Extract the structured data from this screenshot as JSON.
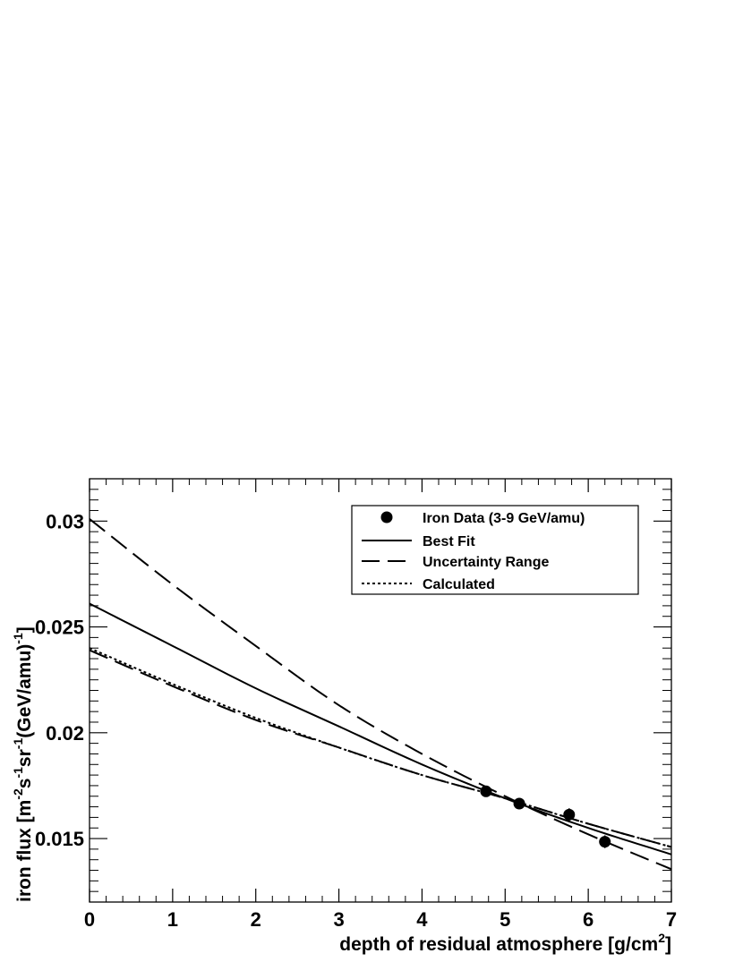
{
  "chart_data": {
    "type": "line",
    "title": "",
    "xlabel": "depth of residual atmosphere [g/cm",
    "xlabel_sup": "2",
    "xlabel_end": "]",
    "ylabel_parts": [
      "iron flux [m",
      "-2",
      "s",
      "-1",
      "sr",
      "-1",
      "(GeV/amu)",
      "-1",
      "]"
    ],
    "xlim": [
      0,
      7
    ],
    "ylim": [
      0.012,
      0.032
    ],
    "x_ticks": [
      0,
      1,
      2,
      3,
      4,
      5,
      6,
      7
    ],
    "x_tick_labels": [
      "0",
      "1",
      "2",
      "3",
      "4",
      "5",
      "6",
      "7"
    ],
    "y_ticks": [
      0.015,
      0.02,
      0.025,
      0.03
    ],
    "y_tick_labels": [
      "0.015",
      "0.02",
      "0.025",
      "0.03"
    ],
    "grid": false,
    "legend_position": "top-right",
    "legend": [
      {
        "label": "Iron Data (3-9 GeV/amu)",
        "style": "marker"
      },
      {
        "label": "Best Fit",
        "style": "solid"
      },
      {
        "label": "Uncertainty Range",
        "style": "longdash"
      },
      {
        "label": "Calculated",
        "style": "dotted"
      }
    ],
    "data_points": [
      {
        "x": 4.77,
        "y": 0.01723,
        "err": 0.0002
      },
      {
        "x": 5.17,
        "y": 0.01665,
        "err": 0.0002
      },
      {
        "x": 5.77,
        "y": 0.01613,
        "err": 0.0003
      },
      {
        "x": 6.2,
        "y": 0.01485,
        "err": 0.0003
      }
    ],
    "series": [
      {
        "name": "Best Fit",
        "style": "solid",
        "x": [
          0,
          1,
          2,
          3,
          4,
          5,
          6,
          7
        ],
        "values": [
          0.0261,
          0.0241,
          0.0221,
          0.0203,
          0.0185,
          0.0169,
          0.0155,
          0.01425
        ]
      },
      {
        "name": "Uncertainty Range",
        "style": "longdash",
        "x": [
          0,
          1,
          2,
          3,
          4,
          5,
          6,
          7
        ],
        "values": [
          0.0301,
          0.027,
          0.0241,
          0.0213,
          0.019,
          0.017,
          0.0152,
          0.01355
        ]
      },
      {
        "name": "Uncertainty Range",
        "style": "longdash",
        "x": [
          0,
          1,
          2,
          3,
          4,
          5,
          6,
          7
        ],
        "values": [
          0.0239,
          0.0222,
          0.0206,
          0.0193,
          0.018,
          0.0169,
          0.0157,
          0.0146
        ]
      },
      {
        "name": "Calculated",
        "style": "dotted",
        "x": [
          0,
          1,
          2,
          3,
          4,
          5,
          6,
          7
        ],
        "values": [
          0.024,
          0.0223,
          0.0207,
          0.0193,
          0.018,
          0.0169,
          0.0157,
          0.0146
        ]
      }
    ]
  }
}
